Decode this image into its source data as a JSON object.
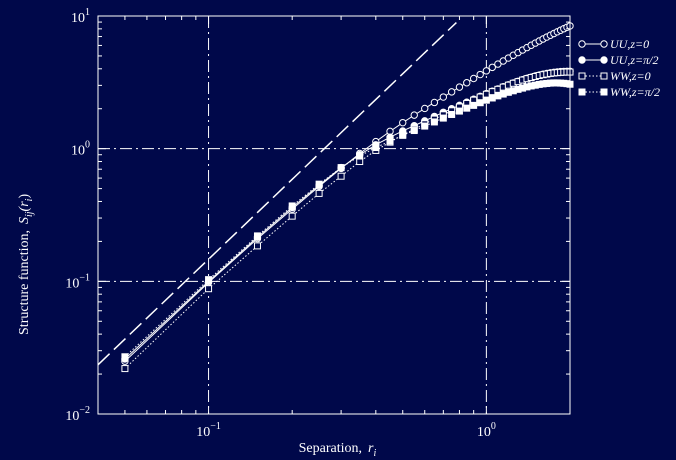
{
  "colors": {
    "background": "#00084a",
    "foreground": "#ffffff"
  },
  "chart_data": {
    "type": "line",
    "title": "",
    "xlabel": "Separation,",
    "xlabel_var": "r",
    "xlabel_sub": "i",
    "ylabel": "Structure function,",
    "ylabel_var": "S",
    "ylabel_sub": "ij",
    "ylabel_arg": "(r",
    "ylabel_arg_sub": "i",
    "ylabel_close": ")",
    "x_scale": "log",
    "y_scale": "log",
    "xlim": [
      0.04,
      2.0
    ],
    "ylim": [
      0.01,
      10
    ],
    "x_ticks": [
      {
        "value": 0.1,
        "base": "10",
        "exp": "−1"
      },
      {
        "value": 1,
        "base": "10",
        "exp": "0"
      }
    ],
    "y_ticks": [
      {
        "value": 0.01,
        "base": "10",
        "exp": "−2"
      },
      {
        "value": 0.1,
        "base": "10",
        "exp": "−1"
      },
      {
        "value": 1,
        "base": "10",
        "exp": "0"
      },
      {
        "value": 10,
        "base": "10",
        "exp": "1"
      }
    ],
    "grid": true,
    "grid_style": "dash-dot",
    "legend_position": "outside-right",
    "reference_line": {
      "style": "dashed",
      "x": [
        0.04,
        0.78
      ],
      "y": [
        0.0235,
        8.93
      ]
    },
    "series": [
      {
        "name": "UU,z=0",
        "marker": "open-circle",
        "line": "solid",
        "x": [
          0.05,
          0.1,
          0.15,
          0.2,
          0.25,
          0.3,
          0.35,
          0.4,
          0.45,
          0.5,
          0.55,
          0.6,
          0.65,
          0.7,
          0.75,
          0.8,
          0.85,
          0.9,
          0.95,
          1.0,
          1.05,
          1.1,
          1.15,
          1.2,
          1.25,
          1.3,
          1.35,
          1.4,
          1.45,
          1.5,
          1.55,
          1.6,
          1.65,
          1.7,
          1.75,
          1.8,
          1.85,
          1.9,
          1.95,
          2.0
        ],
        "y": [
          0.025,
          0.098,
          0.21,
          0.35,
          0.52,
          0.71,
          0.92,
          1.13,
          1.35,
          1.57,
          1.79,
          2.01,
          2.23,
          2.45,
          2.68,
          2.91,
          3.14,
          3.38,
          3.62,
          3.86,
          4.1,
          4.34,
          4.58,
          4.82,
          5.06,
          5.3,
          5.54,
          5.78,
          6.02,
          6.25,
          6.48,
          6.71,
          6.94,
          7.16,
          7.38,
          7.6,
          7.81,
          8.02,
          8.22,
          8.42
        ]
      },
      {
        "name": "UU,z=π/2",
        "marker": "filled-circle",
        "line": "solid",
        "x": [
          0.05,
          0.1,
          0.15,
          0.2,
          0.25,
          0.3,
          0.35,
          0.4,
          0.45,
          0.5,
          0.55,
          0.6,
          0.65,
          0.7,
          0.75,
          0.8,
          0.85,
          0.9,
          0.95,
          1.0,
          1.05,
          1.1,
          1.15,
          1.2,
          1.25,
          1.3,
          1.35,
          1.4,
          1.45,
          1.5,
          1.55,
          1.6,
          1.65,
          1.7,
          1.75,
          1.8,
          1.85,
          1.9,
          1.95,
          2.0
        ],
        "y": [
          0.026,
          0.1,
          0.215,
          0.36,
          0.53,
          0.72,
          0.9,
          1.07,
          1.22,
          1.36,
          1.49,
          1.62,
          1.75,
          1.88,
          2.0,
          2.12,
          2.24,
          2.36,
          2.48,
          2.6,
          2.71,
          2.82,
          2.93,
          3.03,
          3.13,
          3.22,
          3.31,
          3.39,
          3.46,
          3.53,
          3.59,
          3.64,
          3.69,
          3.73,
          3.76,
          3.79,
          3.81,
          3.82,
          3.83,
          3.83
        ]
      },
      {
        "name": "WW,z=0",
        "marker": "open-square",
        "line": "dotted",
        "x": [
          0.05,
          0.1,
          0.15,
          0.2,
          0.25,
          0.3,
          0.35,
          0.4,
          0.45,
          0.5,
          0.55,
          0.6,
          0.65,
          0.7,
          0.75,
          0.8,
          0.85,
          0.9,
          0.95,
          1.0,
          1.05,
          1.1,
          1.15,
          1.2,
          1.25,
          1.3,
          1.35,
          1.4,
          1.45,
          1.5,
          1.55,
          1.6,
          1.65,
          1.7,
          1.75,
          1.8,
          1.85,
          1.9,
          1.95,
          2.0
        ],
        "y": [
          0.022,
          0.088,
          0.185,
          0.31,
          0.46,
          0.62,
          0.8,
          0.97,
          1.12,
          1.27,
          1.4,
          1.54,
          1.67,
          1.8,
          1.93,
          2.06,
          2.19,
          2.32,
          2.45,
          2.57,
          2.69,
          2.8,
          2.91,
          3.01,
          3.11,
          3.2,
          3.29,
          3.37,
          3.44,
          3.5,
          3.56,
          3.61,
          3.65,
          3.69,
          3.72,
          3.74,
          3.76,
          3.77,
          3.78,
          3.78
        ]
      },
      {
        "name": "WW,z=π/2",
        "marker": "filled-square",
        "line": "dotted",
        "x": [
          0.05,
          0.1,
          0.15,
          0.2,
          0.25,
          0.3,
          0.35,
          0.4,
          0.45,
          0.5,
          0.55,
          0.6,
          0.65,
          0.7,
          0.75,
          0.8,
          0.85,
          0.9,
          0.95,
          1.0,
          1.05,
          1.1,
          1.15,
          1.2,
          1.25,
          1.3,
          1.35,
          1.4,
          1.45,
          1.5,
          1.55,
          1.6,
          1.65,
          1.7,
          1.75,
          1.8,
          1.85,
          1.9,
          1.95,
          2.0
        ],
        "y": [
          0.027,
          0.103,
          0.22,
          0.37,
          0.54,
          0.72,
          0.88,
          1.02,
          1.14,
          1.26,
          1.37,
          1.48,
          1.59,
          1.7,
          1.81,
          1.92,
          2.02,
          2.12,
          2.22,
          2.32,
          2.41,
          2.5,
          2.58,
          2.66,
          2.73,
          2.8,
          2.86,
          2.92,
          2.97,
          3.01,
          3.05,
          3.08,
          3.1,
          3.12,
          3.13,
          3.13,
          3.12,
          3.11,
          3.09,
          3.06
        ]
      }
    ]
  }
}
